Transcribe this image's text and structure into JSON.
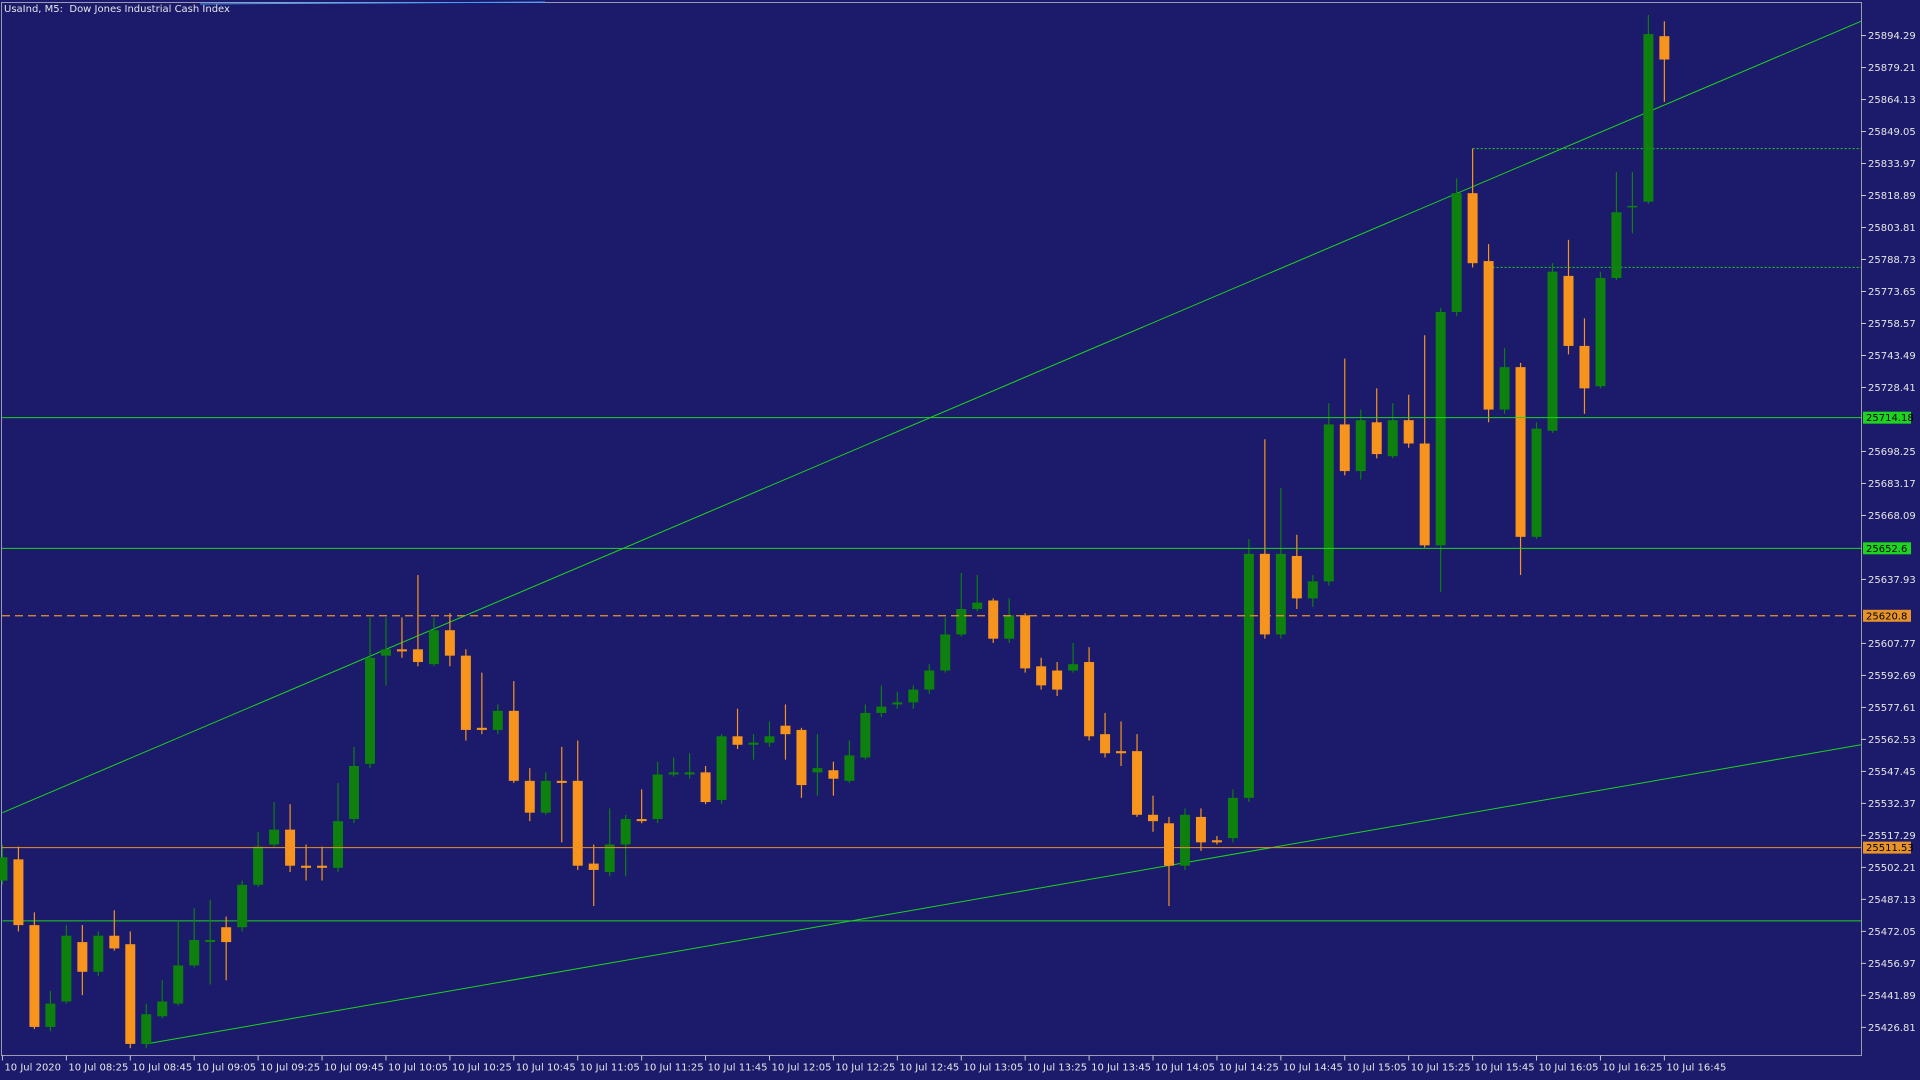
{
  "chart_data": {
    "type": "candlestick",
    "title": "UsaInd, M5:  Dow Jones Industrial Cash Index",
    "categories": [
      "10 Jul 2020",
      null,
      null,
      null,
      "10 Jul 08:25",
      null,
      null,
      null,
      "10 Jul 08:45",
      null,
      null,
      null,
      "10 Jul 09:05",
      null,
      null,
      null,
      "10 Jul 09:25",
      null,
      null,
      null,
      "10 Jul 09:45",
      null,
      null,
      null,
      "10 Jul 10:05",
      null,
      null,
      null,
      "10 Jul 10:25",
      null,
      null,
      null,
      "10 Jul 10:45",
      null,
      null,
      null,
      "10 Jul 11:05",
      null,
      null,
      null,
      "10 Jul 11:25",
      null,
      null,
      null,
      "10 Jul 11:45",
      null,
      null,
      null,
      "10 Jul 12:05",
      null,
      null,
      null,
      "10 Jul 12:25",
      null,
      null,
      null,
      "10 Jul 12:45",
      null,
      null,
      null,
      "10 Jul 13:05",
      null,
      null,
      null,
      "10 Jul 13:25",
      null,
      null,
      null,
      "10 Jul 13:45",
      null,
      null,
      null,
      "10 Jul 14:05",
      null,
      null,
      null,
      "10 Jul 14:25",
      null,
      null,
      null,
      "10 Jul 14:45",
      null,
      null,
      null,
      "10 Jul 15:05",
      null,
      null,
      null,
      "10 Jul 15:25",
      null,
      null,
      null,
      "10 Jul 15:45",
      null,
      null,
      null,
      "10 Jul 16:05",
      null,
      null,
      null,
      "10 Jul 16:25",
      null,
      null,
      null,
      "10 Jul 16:45"
    ],
    "open": [
      25496,
      25506,
      25475,
      25427,
      25439,
      25467,
      25453,
      25470,
      25466,
      25419,
      25432,
      25438,
      25456,
      25467,
      25474,
      25474,
      25494,
      25513,
      25520,
      25503,
      25503,
      25502,
      25525,
      25551,
      25602,
      25605,
      25605,
      25598,
      25614,
      25602,
      25568,
      25567,
      25576,
      25543,
      25528,
      25543,
      25543,
      25504,
      25500,
      25513,
      25525,
      25525,
      25546,
      25546,
      25547,
      25534,
      25564,
      25560,
      25561,
      25569,
      25567,
      25547,
      25548,
      25543,
      25554,
      25575,
      25579,
      25580,
      25586,
      25595,
      25612,
      25624,
      25628,
      25610,
      25621,
      25597,
      25595,
      25595,
      25599,
      25565,
      25557,
      25557,
      25527,
      25523,
      25503,
      25526,
      25515,
      25516,
      25535,
      25650,
      25612,
      25649,
      25629,
      25637,
      25711,
      25689,
      25712,
      25696,
      25713,
      25702,
      25654,
      25764,
      25820,
      25788,
      25718,
      25738,
      25658,
      25708,
      25781,
      25748,
      25729,
      25780,
      25814,
      25816,
      25894
    ],
    "high": [
      25513,
      25512,
      25481,
      25444,
      25475,
      25475,
      25472,
      25482,
      25472,
      25438,
      25449,
      25477,
      25483,
      25487,
      25479,
      25496,
      25519,
      25533,
      25532,
      25513,
      25512,
      25542,
      25559,
      25620,
      25620,
      25620,
      25640,
      25620,
      25622,
      25605,
      25594,
      25579,
      25590,
      25549,
      25547,
      25559,
      25562,
      25513,
      25530,
      25527,
      25539,
      25552,
      25554,
      25556,
      25550,
      25565,
      25577,
      25565,
      25571,
      25579,
      25568,
      25565,
      25552,
      25562,
      25579,
      25588,
      25585,
      25588,
      25598,
      25620,
      25641,
      25640,
      25629,
      25629,
      25622,
      25601,
      25599,
      25608,
      25606,
      25575,
      25571,
      25565,
      25536,
      25526,
      25530,
      25530,
      25517,
      25539,
      25657,
      25704,
      25681,
      25659,
      25640,
      25721,
      25742,
      25718,
      25728,
      25721,
      25725,
      25753,
      25766,
      25827,
      25841,
      25796,
      25747,
      25740,
      25712,
      25787,
      25798,
      25761,
      25783,
      25830,
      25830,
      25904,
      25901
    ],
    "low": [
      25494,
      25472,
      25426,
      25425,
      25438,
      25442,
      25451,
      25463,
      25417,
      25417,
      25431,
      25437,
      25455,
      25447,
      25449,
      25472,
      25493,
      25512,
      25500,
      25496,
      25496,
      25500,
      25523,
      25549,
      25588,
      25601,
      25597,
      25597,
      25597,
      25562,
      25565,
      25565,
      25542,
      25524,
      25527,
      25514,
      25501,
      25484,
      25498,
      25498,
      25523,
      25523,
      25545,
      25544,
      25532,
      25532,
      25558,
      25553,
      25559,
      25553,
      25535,
      25536,
      25536,
      25542,
      25553,
      25573,
      25577,
      25577,
      25584,
      25594,
      25611,
      25623,
      25608,
      25608,
      25594,
      25586,
      25583,
      25594,
      25562,
      25554,
      25550,
      25526,
      25519,
      25484,
      25501,
      25510,
      25513,
      25514,
      25533,
      25610,
      25610,
      25624,
      25625,
      25635,
      25687,
      25685,
      25695,
      25695,
      25700,
      25653,
      25632,
      25762,
      25785,
      25712,
      25716,
      25640,
      25657,
      25707,
      25744,
      25716,
      25728,
      25779,
      25801,
      25815,
      25863
    ],
    "close": [
      25507,
      25475,
      25427,
      25438,
      25470,
      25453,
      25470,
      25464,
      25419,
      25433,
      25439,
      25456,
      25468,
      25468,
      25467,
      25494,
      25512,
      25520,
      25503,
      25502,
      25502,
      25524,
      25550,
      25601,
      25605,
      25604,
      25599,
      25614,
      25602,
      25567,
      25567,
      25576,
      25543,
      25528,
      25543,
      25542,
      25503,
      25501,
      25513,
      25525,
      25524,
      25546,
      25547,
      25547,
      25533,
      25564,
      25560,
      25561,
      25564,
      25565,
      25541,
      25549,
      25544,
      25555,
      25575,
      25578,
      25580,
      25586,
      25595,
      25612,
      25624,
      25627,
      25610,
      25621,
      25596,
      25588,
      25586,
      25598,
      25564,
      25556,
      25556,
      25527,
      25524,
      25503,
      25527,
      25514,
      25514,
      25535,
      25650,
      25612,
      25650,
      25629,
      25637,
      25711,
      25689,
      25713,
      25697,
      25713,
      25702,
      25654,
      25764,
      25820,
      25787,
      25718,
      25738,
      25658,
      25709,
      25783,
      25748,
      25728,
      25780,
      25811,
      25814,
      25895,
      25883
    ],
    "up_color": "#0d800d",
    "down_color": "#f7941d",
    "ylim": [
      25413.54,
      25909.87
    ],
    "yticks": [
      25894.29,
      25879.21,
      25864.13,
      25849.05,
      25833.97,
      25818.89,
      25803.81,
      25788.73,
      25773.65,
      25758.57,
      25743.49,
      25728.41,
      25698.25,
      25683.17,
      25668.09,
      25637.93,
      25607.77,
      25592.69,
      25577.61,
      25562.53,
      25547.45,
      25532.37,
      25517.29,
      25502.21,
      25487.13,
      25472.05,
      25456.97,
      25441.89,
      25426.81
    ],
    "marked_levels": [
      {
        "value": 25714.18,
        "color": "#1ed41e",
        "dashed": false
      },
      {
        "value": 25652.6,
        "color": "#1ed41e",
        "dashed": false
      },
      {
        "value": 25620.8,
        "color": "#e8932a",
        "dashed": true
      },
      {
        "value": 25511.53,
        "color": "#e8932a",
        "dashed": false
      }
    ],
    "levels": [
      {
        "value": 25477,
        "color": "#1ed41e",
        "from": 0,
        "dotted": false
      },
      {
        "value": 25841,
        "color": "#1ed41e",
        "from": 92,
        "dotted": true
      },
      {
        "value": 25785,
        "color": "#1ed41e",
        "from": 93,
        "dotted": true
      }
    ],
    "trendlines": [
      {
        "x": [
          0,
          116.3
        ],
        "y": [
          25528,
          25901
        ],
        "color": "#1ed41e"
      },
      {
        "x": [
          9,
          116.3
        ],
        "y": [
          25419,
          25560
        ],
        "color": "#1ed41e"
      }
    ]
  }
}
